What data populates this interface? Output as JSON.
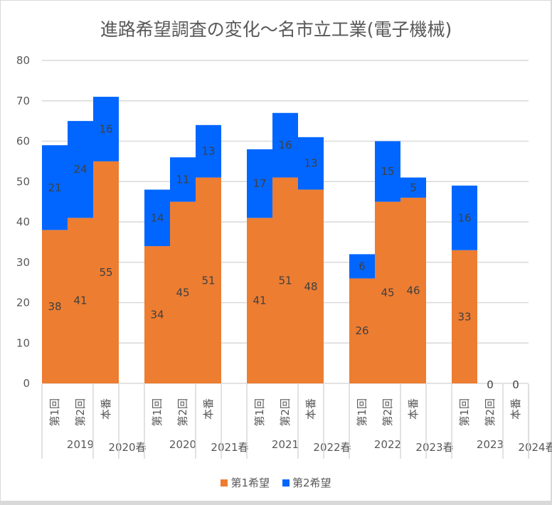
{
  "chart_data": {
    "type": "bar",
    "stacked": true,
    "title": "進路希望調査の変化～名市立工業(電子機械)",
    "xlabel": "",
    "ylabel": "",
    "ylim": [
      0,
      80
    ],
    "yticks": [
      0,
      10,
      20,
      30,
      40,
      50,
      60,
      70,
      80
    ],
    "grid": true,
    "legend_position": "bottom",
    "groups": [
      {
        "year": "2019",
        "spring": "2020春",
        "categories": [
          "第1回",
          "第2回",
          "本番"
        ]
      },
      {
        "year": "2020",
        "spring": "2021春",
        "categories": [
          "第1回",
          "第2回",
          "本番"
        ]
      },
      {
        "year": "2021",
        "spring": "2022春",
        "categories": [
          "第1回",
          "第2回",
          "本番"
        ]
      },
      {
        "year": "2022",
        "spring": "2023春",
        "categories": [
          "第1回",
          "第2回",
          "本番"
        ]
      },
      {
        "year": "2023",
        "spring": "2024春",
        "categories": [
          "第1回",
          "第2回",
          "本番"
        ]
      }
    ],
    "series": [
      {
        "name": "第1希望",
        "color": "#ED7D31",
        "values": [
          [
            38,
            41,
            55
          ],
          [
            34,
            45,
            51
          ],
          [
            41,
            51,
            48
          ],
          [
            26,
            45,
            46
          ],
          [
            33,
            0,
            0
          ]
        ]
      },
      {
        "name": "第2希望",
        "color": "#0066FF",
        "values": [
          [
            21,
            24,
            16
          ],
          [
            14,
            11,
            13
          ],
          [
            17,
            16,
            13
          ],
          [
            6,
            15,
            5
          ],
          [
            16,
            0,
            0
          ]
        ]
      }
    ],
    "zero_labels_shown": [
      [
        4,
        1
      ],
      [
        4,
        2
      ]
    ]
  }
}
